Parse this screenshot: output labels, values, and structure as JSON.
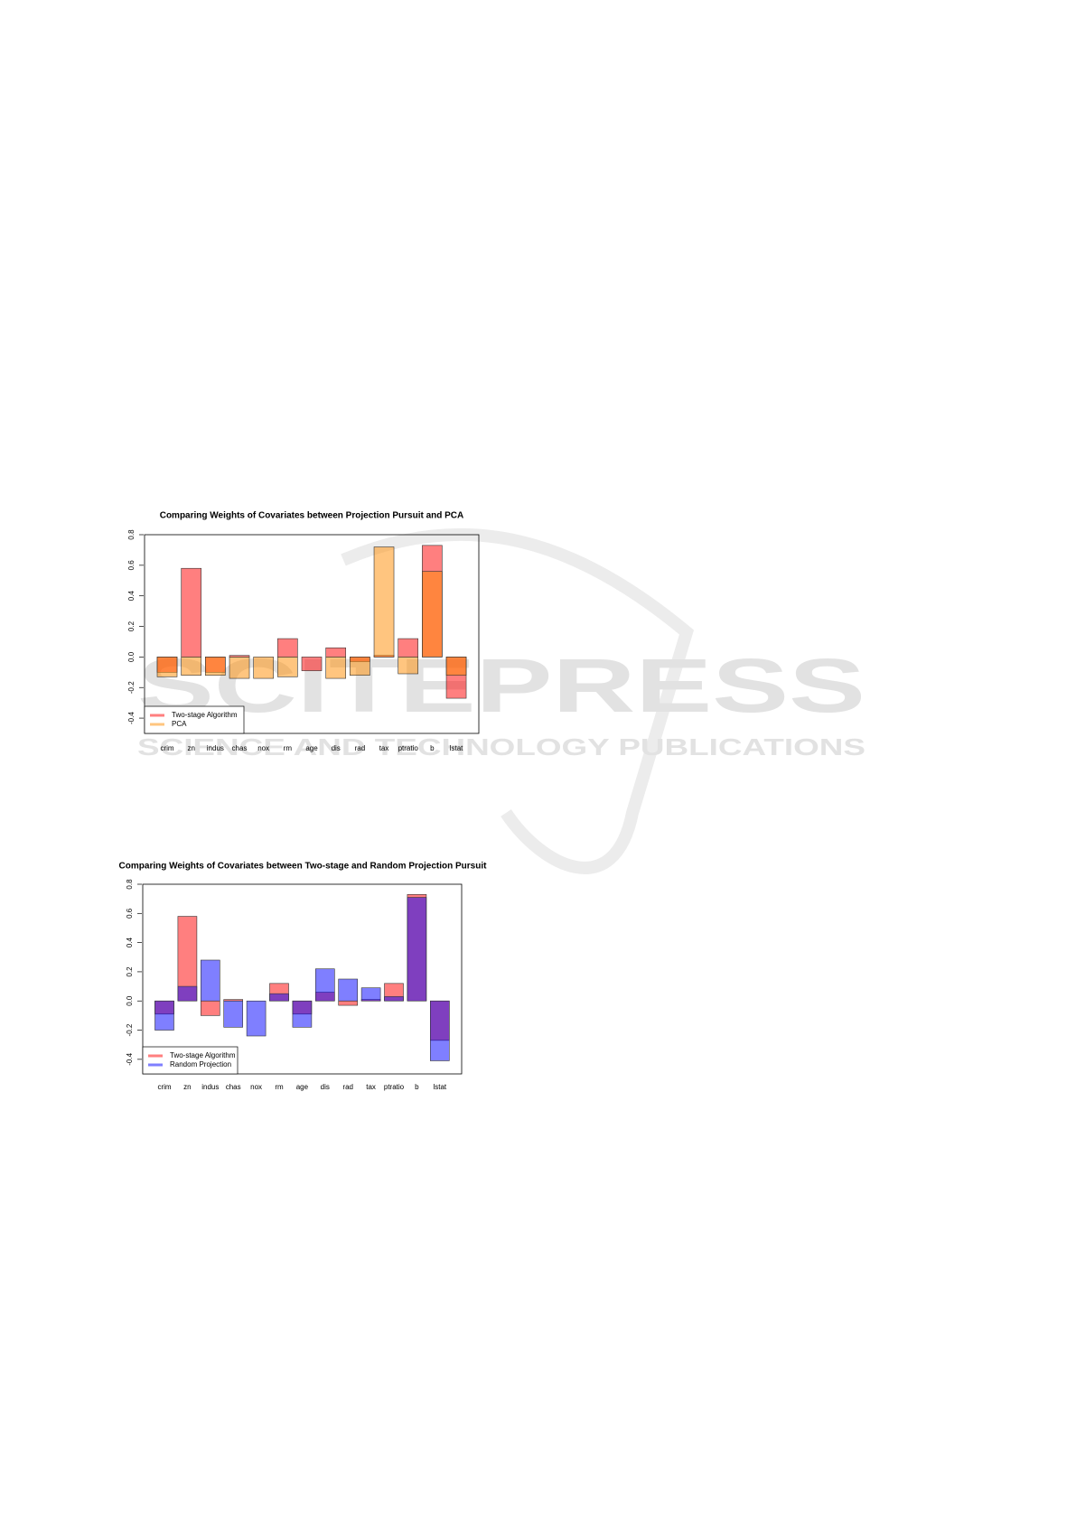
{
  "watermark": {
    "title": "SCITEPRESS",
    "subtitle": "SCIENCE AND TECHNOLOGY PUBLICATIONS"
  },
  "chart_data": [
    {
      "type": "bar",
      "title": "Comparing Weights of Covariates between Projection Pursuit and PCA",
      "categories": [
        "crim",
        "zn",
        "indus",
        "chas",
        "nox",
        "rm",
        "age",
        "dis",
        "rad",
        "tax",
        "ptratio",
        "b",
        "lstat"
      ],
      "series": [
        {
          "name": "Two-stage Algorithm",
          "color": "#ff000080",
          "values": [
            -0.1,
            0.58,
            -0.1,
            0.01,
            0,
            0.12,
            -0.09,
            0.06,
            -0.03,
            0.01,
            0.12,
            0.73,
            -0.27
          ]
        },
        {
          "name": "PCA",
          "color": "#ff8c0080",
          "values": [
            -0.13,
            -0.12,
            -0.12,
            -0.14,
            -0.14,
            -0.13,
            0,
            -0.14,
            -0.12,
            0.72,
            -0.11,
            0.56,
            -0.12
          ]
        }
      ],
      "ylim": [
        -0.5,
        0.8
      ],
      "yticks": [
        -0.4,
        -0.2,
        {
          "value": 0,
          "label": "0.0"
        },
        0.2,
        0.4,
        0.6,
        0.8
      ],
      "legend": "bottomleft"
    },
    {
      "type": "bar",
      "title": "Comparing Weights of Covariates between Two-stage and Random Projection Pursuit",
      "categories": [
        "crim",
        "zn",
        "indus",
        "chas",
        "nox",
        "rm",
        "age",
        "dis",
        "rad",
        "tax",
        "ptratio",
        "b",
        "lstat"
      ],
      "series": [
        {
          "name": "Two-stage Algorithm",
          "color": "#ff000080",
          "values": [
            -0.09,
            0.58,
            -0.1,
            0.01,
            0,
            0.12,
            -0.09,
            0.06,
            -0.03,
            0.01,
            0.12,
            0.73,
            -0.27
          ]
        },
        {
          "name": "Random Projection",
          "color": "#0000ff80",
          "values": [
            -0.2,
            0.1,
            0.28,
            -0.18,
            -0.24,
            0.05,
            -0.18,
            0.22,
            0.15,
            0.09,
            0.03,
            0.71,
            -0.41
          ]
        }
      ],
      "ylim": [
        -0.5,
        0.8
      ],
      "yticks": [
        -0.4,
        -0.2,
        {
          "value": 0,
          "label": "0.0"
        },
        0.2,
        0.4,
        0.6,
        0.8
      ],
      "legend": "bottomleft"
    }
  ]
}
